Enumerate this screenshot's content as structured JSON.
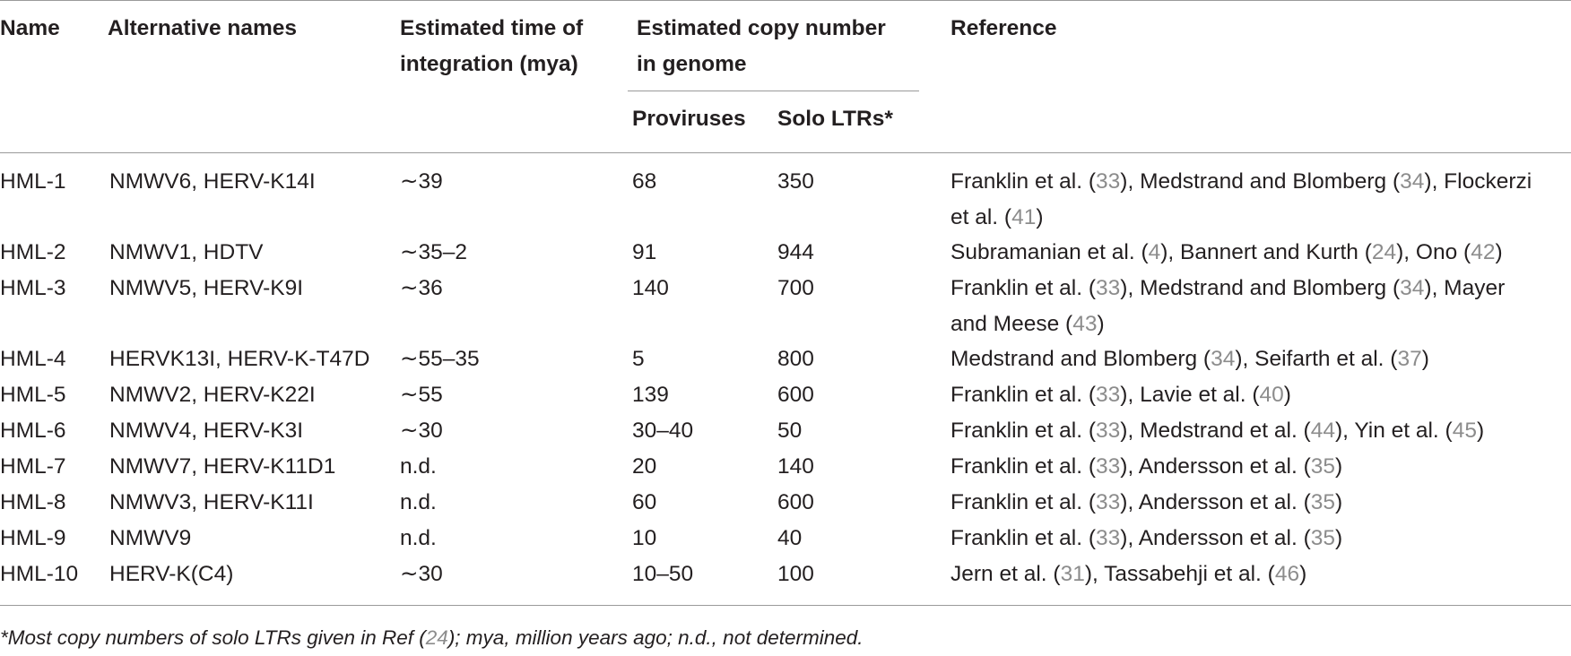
{
  "headers": {
    "name": "Name",
    "alt": "Alternative names",
    "time_line1": "Estimated time of",
    "time_line2": "integration (mya)",
    "copy_line1": "Estimated copy number",
    "copy_line2": "in genome",
    "proviruses": "Proviruses",
    "solo": "Solo LTRs*",
    "reference": "Reference"
  },
  "rows": [
    {
      "name": "HML-1",
      "alt": "NMWV6, HERV-K14I",
      "time": "∼39",
      "prov": "68",
      "solo": "350",
      "ref": [
        {
          "t": "Franklin et al. ("
        },
        {
          "t": "33",
          "cite": true
        },
        {
          "t": "), Medstrand and Blomberg ("
        },
        {
          "t": "34",
          "cite": true
        },
        {
          "t": "), Flockerzi"
        },
        {
          "t": "\n"
        },
        {
          "t": "et al. ("
        },
        {
          "t": "41",
          "cite": true
        },
        {
          "t": ")"
        }
      ]
    },
    {
      "name": "HML-2",
      "alt": "NMWV1, HDTV",
      "time": "∼35–2",
      "prov": "91",
      "solo": "944",
      "ref": [
        {
          "t": "Subramanian et al. ("
        },
        {
          "t": "4",
          "cite": true
        },
        {
          "t": "), Bannert and Kurth ("
        },
        {
          "t": "24",
          "cite": true
        },
        {
          "t": "), Ono ("
        },
        {
          "t": "42",
          "cite": true
        },
        {
          "t": ")"
        }
      ]
    },
    {
      "name": "HML-3",
      "alt": "NMWV5, HERV-K9I",
      "time": "∼36",
      "prov": "140",
      "solo": "700",
      "ref": [
        {
          "t": "Franklin et al. ("
        },
        {
          "t": "33",
          "cite": true
        },
        {
          "t": "), Medstrand and Blomberg ("
        },
        {
          "t": "34",
          "cite": true
        },
        {
          "t": "), Mayer"
        },
        {
          "t": "\n"
        },
        {
          "t": "and Meese ("
        },
        {
          "t": "43",
          "cite": true
        },
        {
          "t": ")"
        }
      ]
    },
    {
      "name": "HML-4",
      "alt": "HERVK13I, HERV-K-T47D",
      "time": "∼55–35",
      "prov": "5",
      "solo": "800",
      "ref": [
        {
          "t": "Medstrand and Blomberg ("
        },
        {
          "t": "34",
          "cite": true
        },
        {
          "t": "), Seifarth et al. ("
        },
        {
          "t": "37",
          "cite": true
        },
        {
          "t": ")"
        }
      ]
    },
    {
      "name": "HML-5",
      "alt": "NMWV2, HERV-K22I",
      "time": "∼55",
      "prov": "139",
      "solo": "600",
      "ref": [
        {
          "t": "Franklin et al. ("
        },
        {
          "t": "33",
          "cite": true
        },
        {
          "t": "), Lavie et al. ("
        },
        {
          "t": "40",
          "cite": true
        },
        {
          "t": ")"
        }
      ]
    },
    {
      "name": "HML-6",
      "alt": "NMWV4, HERV-K3I",
      "time": "∼30",
      "prov": "30–40",
      "solo": "50",
      "ref": [
        {
          "t": "Franklin et al. ("
        },
        {
          "t": "33",
          "cite": true
        },
        {
          "t": "), Medstrand et al. ("
        },
        {
          "t": "44",
          "cite": true
        },
        {
          "t": "), Yin et al. ("
        },
        {
          "t": "45",
          "cite": true
        },
        {
          "t": ")"
        }
      ]
    },
    {
      "name": "HML-7",
      "alt": "NMWV7, HERV-K11D1",
      "time": "n.d.",
      "prov": "20",
      "solo": "140",
      "ref": [
        {
          "t": "Franklin et al. ("
        },
        {
          "t": "33",
          "cite": true
        },
        {
          "t": "), Andersson et al. ("
        },
        {
          "t": "35",
          "cite": true
        },
        {
          "t": ")"
        }
      ]
    },
    {
      "name": "HML-8",
      "alt": "NMWV3, HERV-K11I",
      "time": "n.d.",
      "prov": "60",
      "solo": "600",
      "ref": [
        {
          "t": "Franklin et al. ("
        },
        {
          "t": "33",
          "cite": true
        },
        {
          "t": "), Andersson et al. ("
        },
        {
          "t": "35",
          "cite": true
        },
        {
          "t": ")"
        }
      ]
    },
    {
      "name": "HML-9",
      "alt": "NMWV9",
      "time": "n.d.",
      "prov": "10",
      "solo": "40",
      "ref": [
        {
          "t": "Franklin et al. ("
        },
        {
          "t": "33",
          "cite": true
        },
        {
          "t": "), Andersson et al. ("
        },
        {
          "t": "35",
          "cite": true
        },
        {
          "t": ")"
        }
      ]
    },
    {
      "name": "HML-10",
      "alt": "HERV-K(C4)",
      "time": "∼30",
      "prov": "10–50",
      "solo": "100",
      "ref": [
        {
          "t": "Jern et al. ("
        },
        {
          "t": "31",
          "cite": true
        },
        {
          "t": "), Tassabehji et al. ("
        },
        {
          "t": "46",
          "cite": true
        },
        {
          "t": ")"
        }
      ]
    }
  ],
  "footnote": [
    {
      "t": "*Most copy numbers of solo LTRs given in Ref ("
    },
    {
      "t": "24",
      "cite": true
    },
    {
      "t": "); mya, million years ago; n.d., not determined."
    }
  ],
  "colors": {
    "text": "#231f20",
    "citation": "#8c8c8c",
    "rule": "#9a9a9a"
  }
}
